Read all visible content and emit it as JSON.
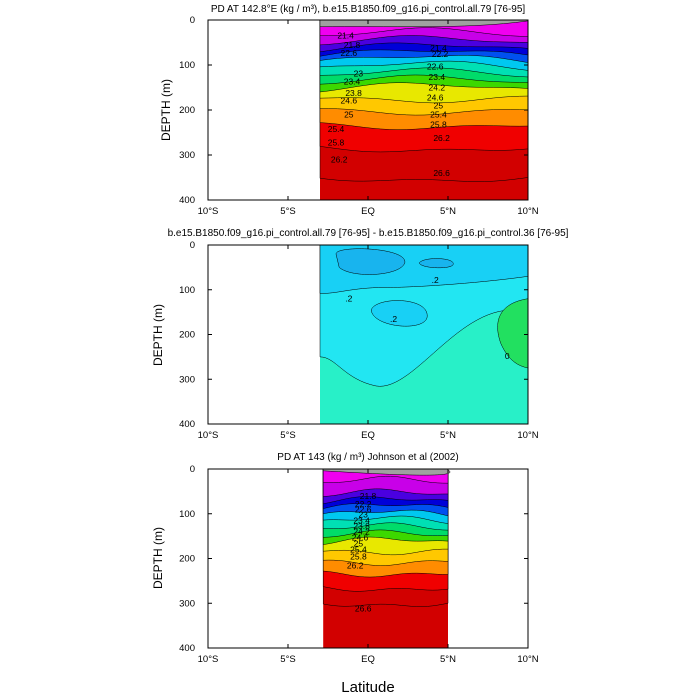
{
  "figure": {
    "x_axis_label": "Latitude"
  },
  "chart_data": [
    {
      "type": "heatmap",
      "title": "PD AT 142.8°E (kg / m³), b.e15.B1850.f09_g16.pi_control.all.79 [76-95]",
      "xlabel": "",
      "ylabel": "DEPTH (m)",
      "x_tick_labels": [
        "10°S",
        "5°S",
        "EQ",
        "5°N",
        "10°N"
      ],
      "x_ticks": [
        -10,
        -5,
        0,
        5,
        10
      ],
      "y_ticks": [
        0,
        100,
        200,
        300,
        400
      ],
      "y_tick_labels": [
        "0",
        "100",
        "200",
        "300",
        "400"
      ],
      "xlim": [
        -10,
        10
      ],
      "ylim": [
        400,
        0
      ],
      "data_xlim": [
        -3,
        10
      ],
      "contour_levels": [
        21.4,
        21.8,
        22.2,
        22.6,
        23,
        23.4,
        23.8,
        24.2,
        24.6,
        25,
        25.4,
        25.8,
        26.2,
        26.6
      ],
      "contour_depths": [
        35,
        52,
        67,
        80,
        93,
        108,
        124,
        140,
        156,
        172,
        199,
        232,
        283,
        350
      ],
      "contour_labels": [
        {
          "x": -1.4,
          "y": 34,
          "text": "21.4"
        },
        {
          "x": 4.4,
          "y": 62,
          "text": "21.4"
        },
        {
          "x": -1.0,
          "y": 56,
          "text": "21.8"
        },
        {
          "x": 4.5,
          "y": 76,
          "text": "22.2"
        },
        {
          "x": -1.2,
          "y": 73,
          "text": "22.6"
        },
        {
          "x": 4.2,
          "y": 103,
          "text": "22.6"
        },
        {
          "x": -0.6,
          "y": 119,
          "text": "23"
        },
        {
          "x": -1.0,
          "y": 137,
          "text": "23.4"
        },
        {
          "x": 4.3,
          "y": 127,
          "text": "23.4"
        },
        {
          "x": -0.9,
          "y": 162,
          "text": "23.8"
        },
        {
          "x": 4.3,
          "y": 150,
          "text": "24.2"
        },
        {
          "x": -1.2,
          "y": 179,
          "text": "24.6"
        },
        {
          "x": 4.2,
          "y": 172,
          "text": "24.6"
        },
        {
          "x": -1.2,
          "y": 210,
          "text": "25"
        },
        {
          "x": 4.4,
          "y": 190,
          "text": "25"
        },
        {
          "x": 4.4,
          "y": 210,
          "text": "25.4"
        },
        {
          "x": -2.0,
          "y": 242,
          "text": "25.4"
        },
        {
          "x": -2.0,
          "y": 272,
          "text": "25.8"
        },
        {
          "x": 4.4,
          "y": 232,
          "text": "25.8"
        },
        {
          "x": 4.6,
          "y": 262,
          "text": "26.2"
        },
        {
          "x": -1.8,
          "y": 310,
          "text": "26.2"
        },
        {
          "x": 4.6,
          "y": 340,
          "text": "26.6"
        }
      ]
    },
    {
      "type": "heatmap",
      "title": "b.e15.B1850.f09_g16.pi_control.all.79 [76-95] - b.e15.B1850.f09_g16.pi_control.36 [76-95]",
      "xlabel": "",
      "ylabel": "DEPTH (m)",
      "x_tick_labels": [
        "10°S",
        "5°S",
        "EQ",
        "5°N",
        "10°N"
      ],
      "x_ticks": [
        -10,
        -5,
        0,
        5,
        10
      ],
      "y_ticks": [
        0,
        100,
        200,
        300,
        400
      ],
      "y_tick_labels": [
        "0",
        "100",
        "200",
        "300",
        "400"
      ],
      "xlim": [
        -10,
        10
      ],
      "ylim": [
        400,
        0
      ],
      "data_xlim": [
        -3,
        10
      ],
      "regions": [
        {
          "value": -0.6,
          "color": "#18b4ee"
        },
        {
          "value": -0.4,
          "color": "#18d0f5"
        },
        {
          "value": -0.2,
          "color": "#22e6f2"
        },
        {
          "value": 0.0,
          "color": "#28f0c8"
        },
        {
          "value": 0.2,
          "color": "#22e060"
        }
      ],
      "contour_labels": [
        {
          "x": 4.2,
          "y": 78,
          "text": ".2"
        },
        {
          "x": -1.2,
          "y": 120,
          "text": ".2"
        },
        {
          "x": 1.6,
          "y": 165,
          "text": ".2"
        },
        {
          "x": 8.7,
          "y": 248,
          "text": "0"
        }
      ]
    },
    {
      "type": "heatmap",
      "title": "PD AT 143 (kg / m³) Johnson et al (2002)",
      "xlabel": "Latitude",
      "ylabel": "DEPTH (m)",
      "x_tick_labels": [
        "10°S",
        "5°S",
        "EQ",
        "5°N",
        "10°N"
      ],
      "x_ticks": [
        -10,
        -5,
        0,
        5,
        10
      ],
      "y_ticks": [
        0,
        100,
        200,
        300,
        400
      ],
      "y_tick_labels": [
        "0",
        "100",
        "200",
        "300",
        "400"
      ],
      "xlim": [
        -10,
        10
      ],
      "ylim": [
        400,
        0
      ],
      "data_xlim": [
        -2.8,
        5
      ],
      "contour_levels": [
        21.4,
        21.8,
        22.2,
        22.6,
        23,
        23.4,
        23.8,
        24.2,
        24.6,
        25,
        25.4,
        25.8,
        26.2,
        26.6
      ],
      "contour_depths": [
        30,
        58,
        74,
        88,
        103,
        118,
        134,
        150,
        165,
        182,
        206,
        232,
        265,
        300
      ],
      "contour_labels": [
        {
          "x": 0.0,
          "y": 60,
          "text": "21.8"
        },
        {
          "x": -0.3,
          "y": 78,
          "text": "22.2"
        },
        {
          "x": -0.3,
          "y": 90,
          "text": "22.6"
        },
        {
          "x": -0.3,
          "y": 102,
          "text": "23"
        },
        {
          "x": -0.4,
          "y": 115,
          "text": "23.4"
        },
        {
          "x": -0.4,
          "y": 127,
          "text": "23.8"
        },
        {
          "x": -0.4,
          "y": 140,
          "text": "24.2"
        },
        {
          "x": -0.5,
          "y": 153,
          "text": "24.6"
        },
        {
          "x": -0.6,
          "y": 166,
          "text": "25"
        },
        {
          "x": -0.6,
          "y": 180,
          "text": "25.4"
        },
        {
          "x": -0.6,
          "y": 196,
          "text": "25.8"
        },
        {
          "x": -0.8,
          "y": 216,
          "text": "26.2"
        },
        {
          "x": -0.3,
          "y": 312,
          "text": "26.6"
        }
      ]
    }
  ],
  "colors": {
    "palette": [
      "#a0a0a0",
      "#f000f0",
      "#c800e8",
      "#8c00e8",
      "#4a00e0",
      "#0000d8",
      "#0050f0",
      "#0096f5",
      "#00c8f0",
      "#00e0b4",
      "#00dc6a",
      "#3cd800",
      "#a8e000",
      "#e8e800",
      "#ffc800",
      "#ff8c00",
      "#ff4000",
      "#f00000",
      "#d20000"
    ]
  }
}
